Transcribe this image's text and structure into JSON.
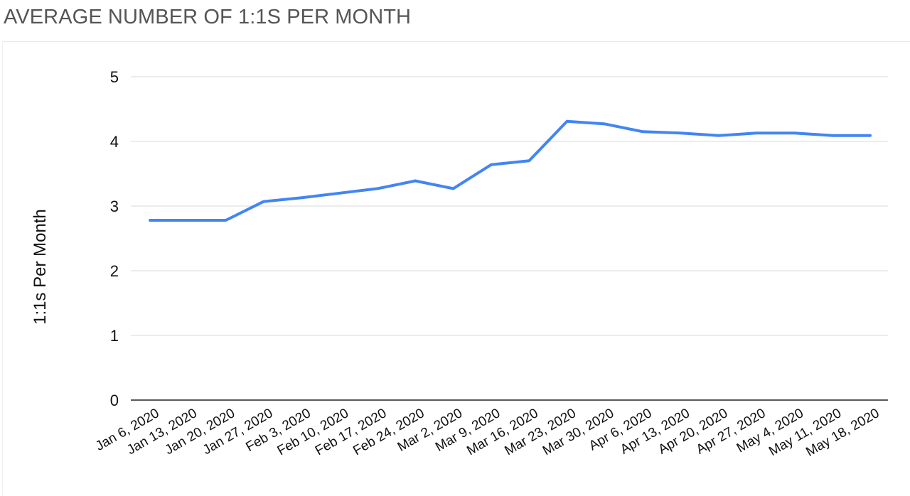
{
  "page": {
    "title": "AVERAGE NUMBER OF 1:1S PER MONTH"
  },
  "chart_data": {
    "type": "line",
    "title": "AVERAGE NUMBER OF 1:1S PER MONTH",
    "xlabel": "",
    "ylabel": "1:1s Per Month",
    "ylim": [
      0,
      5
    ],
    "yticks": [
      0,
      1,
      2,
      3,
      4,
      5
    ],
    "grid": true,
    "legend": "none",
    "categories": [
      "Jan 6, 2020",
      "Jan 13, 2020",
      "Jan 20, 2020",
      "Jan 27, 2020",
      "Feb 3, 2020",
      "Feb 10, 2020",
      "Feb 17, 2020",
      "Feb 24, 2020",
      "Mar 2, 2020",
      "Mar 9, 2020",
      "Mar 16, 2020",
      "Mar 23, 2020",
      "Mar 30, 2020",
      "Apr 6, 2020",
      "Apr 13, 2020",
      "Apr 20, 2020",
      "Apr 27, 2020",
      "May 4, 2020",
      "May 11, 2020",
      "May 18, 2020"
    ],
    "series": [
      {
        "color": "#4285f4",
        "values": [
          2.78,
          2.78,
          2.78,
          3.07,
          3.13,
          3.2,
          3.27,
          3.39,
          3.27,
          3.64,
          3.7,
          4.31,
          4.27,
          4.15,
          4.13,
          4.09,
          4.13,
          4.13,
          4.09,
          4.09
        ]
      }
    ]
  }
}
